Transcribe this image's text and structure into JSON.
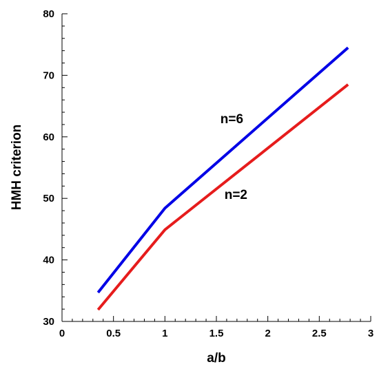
{
  "chart_data": {
    "type": "line",
    "title": "",
    "xlabel": "a/b",
    "ylabel": "HMH criterion",
    "xlim": [
      0,
      3
    ],
    "ylim": [
      30,
      80
    ],
    "x_ticks": [
      "0",
      "0.5",
      "1",
      "1.5",
      "2",
      "2.5",
      "3"
    ],
    "y_ticks": [
      "30",
      "40",
      "50",
      "60",
      "70",
      "80"
    ],
    "grid": false,
    "series": [
      {
        "name": "n=6",
        "color": "#0000e6",
        "x": [
          0.35,
          1.0,
          2.78
        ],
        "y": [
          34.7,
          48.4,
          74.5
        ],
        "label_at": [
          1.65,
          63
        ]
      },
      {
        "name": "n=2",
        "color": "#e61c1c",
        "x": [
          0.35,
          1.0,
          2.78
        ],
        "y": [
          31.9,
          44.9,
          68.5
        ],
        "label_at": [
          1.69,
          50.7
        ]
      }
    ]
  }
}
